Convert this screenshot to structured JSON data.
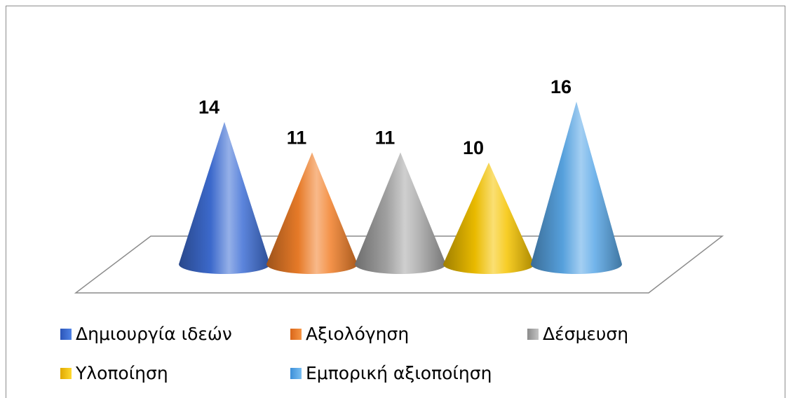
{
  "chart_data": {
    "type": "bar",
    "variant": "3d-cone",
    "title": "",
    "xlabel": "",
    "ylabel": "",
    "categories": [
      "Δημιουργία ιδεών",
      "Αξιολόγηση",
      "Δέσμευση",
      "Υλοποίηση",
      "Εμπορική αξιοποίηση"
    ],
    "values": [
      14,
      11,
      11,
      10,
      16
    ],
    "colors": [
      "#3f6fd6",
      "#f2802a",
      "#a8a8a8",
      "#f5c400",
      "#5aa8e8"
    ],
    "data_labels": [
      "14",
      "11",
      "11",
      "10",
      "16"
    ],
    "grid": false,
    "legend_position": "bottom",
    "ylim": [
      0,
      16
    ]
  },
  "legend": [
    {
      "label": "Δημιουργία ιδεών",
      "color": "#3f6fd6"
    },
    {
      "label": "Αξιολόγηση",
      "color": "#f2802a"
    },
    {
      "label": "Δέσμευση",
      "color": "#a8a8a8"
    },
    {
      "label": "Υλοποίηση",
      "color": "#f5c400"
    },
    {
      "label": "Εμπορική αξιοποίηση",
      "color": "#5aa8e8"
    }
  ]
}
